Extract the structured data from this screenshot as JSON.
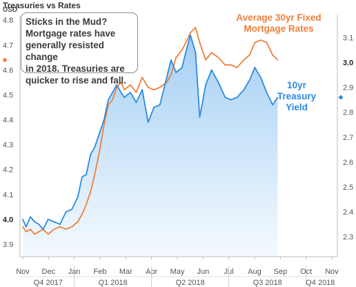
{
  "title": "Treasuries vs Rates",
  "callout": {
    "lines": [
      "Sticks in the Mud?",
      "Mortgage rates have",
      "generally resisted change",
      "in 2018.  Treasuries are",
      "quicker to rise and fall."
    ]
  },
  "colors": {
    "treasury": "#2a8ae2",
    "mortgage": "#ef7f38",
    "area_top": "#9fccf3",
    "area_bottom": "#f3f9fe",
    "axis_text": "#555555"
  },
  "chart_data": {
    "type": "line",
    "title": "Treasuries vs Rates",
    "grid": false,
    "axes": {
      "left": {
        "label": "USD",
        "range": [
          3.85,
          4.82
        ],
        "ticks": [
          "3.9",
          "4.0",
          "4.1",
          "4.2",
          "4.3",
          "4.4",
          "4.5",
          "4.6",
          "4.7",
          "4.8"
        ],
        "bold_ticks": [
          "4.0"
        ]
      },
      "right": {
        "range": [
          2.22,
          3.19
        ],
        "ticks": [
          "2.3",
          "2.4",
          "2.5",
          "2.6",
          "2.7",
          "2.8",
          "2.9",
          "3.0",
          "3.1"
        ],
        "bold_ticks": [
          "3.0"
        ]
      },
      "x": {
        "months": [
          "Nov",
          "Dec",
          "Jan",
          "Feb",
          "Mar",
          "Apr",
          "May",
          "Jun",
          "Jul",
          "Aug",
          "Sep",
          "Oct",
          "Nov"
        ],
        "quarters": [
          "Q4 2017",
          "Q1 2018",
          "Q2 2018",
          "Q3 2018",
          "Q4 2018"
        ]
      }
    },
    "series": [
      {
        "name": "Average 30yr Fixed Mortgage Rates",
        "label_lines": [
          "Average 30yr Fixed",
          "Mortgage Rates"
        ],
        "axis": "left",
        "last_value_marker": 4.64,
        "x": [
          "2017-11-01",
          "2017-11-05",
          "2017-11-10",
          "2017-11-15",
          "2017-11-20",
          "2017-11-25",
          "2017-12-01",
          "2017-12-08",
          "2017-12-15",
          "2017-12-22",
          "2017-12-29",
          "2018-01-05",
          "2018-01-10",
          "2018-01-15",
          "2018-01-20",
          "2018-01-25",
          "2018-01-31",
          "2018-02-05",
          "2018-02-10",
          "2018-02-15",
          "2018-02-20",
          "2018-02-25",
          "2018-03-01",
          "2018-03-08",
          "2018-03-15",
          "2018-03-22",
          "2018-03-29",
          "2018-04-05",
          "2018-04-12",
          "2018-04-20",
          "2018-04-25",
          "2018-05-01",
          "2018-05-08",
          "2018-05-14",
          "2018-05-18",
          "2018-05-24",
          "2018-05-29",
          "2018-06-05",
          "2018-06-12",
          "2018-06-20",
          "2018-06-28",
          "2018-07-05",
          "2018-07-12",
          "2018-07-20",
          "2018-07-27",
          "2018-08-02",
          "2018-08-09",
          "2018-08-16",
          "2018-08-23",
          "2018-08-29"
        ],
        "values": [
          3.97,
          3.95,
          3.96,
          3.94,
          3.95,
          3.96,
          3.94,
          3.96,
          3.97,
          3.96,
          3.97,
          3.99,
          4.02,
          4.06,
          4.11,
          4.18,
          4.28,
          4.38,
          4.46,
          4.48,
          4.53,
          4.55,
          4.52,
          4.54,
          4.51,
          4.57,
          4.53,
          4.52,
          4.53,
          4.55,
          4.58,
          4.65,
          4.68,
          4.72,
          4.75,
          4.77,
          4.71,
          4.64,
          4.67,
          4.65,
          4.62,
          4.62,
          4.61,
          4.64,
          4.66,
          4.71,
          4.72,
          4.71,
          4.66,
          4.64
        ]
      },
      {
        "name": "10yr Treasury Yield",
        "label_lines": [
          "10yr",
          "Treasury",
          "Yield"
        ],
        "axis": "right",
        "last_value_marker": 2.86,
        "x": [
          "2017-11-01",
          "2017-11-05",
          "2017-11-10",
          "2017-11-15",
          "2017-11-20",
          "2017-11-25",
          "2017-12-01",
          "2017-12-08",
          "2017-12-15",
          "2017-12-22",
          "2017-12-29",
          "2018-01-05",
          "2018-01-10",
          "2018-01-15",
          "2018-01-20",
          "2018-01-25",
          "2018-01-31",
          "2018-02-05",
          "2018-02-10",
          "2018-02-15",
          "2018-02-20",
          "2018-02-25",
          "2018-03-01",
          "2018-03-08",
          "2018-03-15",
          "2018-03-22",
          "2018-03-29",
          "2018-04-05",
          "2018-04-12",
          "2018-04-20",
          "2018-04-25",
          "2018-05-01",
          "2018-05-08",
          "2018-05-14",
          "2018-05-18",
          "2018-05-24",
          "2018-05-29",
          "2018-06-05",
          "2018-06-12",
          "2018-06-20",
          "2018-06-28",
          "2018-07-05",
          "2018-07-12",
          "2018-07-20",
          "2018-07-27",
          "2018-08-02",
          "2018-08-09",
          "2018-08-16",
          "2018-08-23",
          "2018-08-29"
        ],
        "values": [
          2.37,
          2.34,
          2.38,
          2.36,
          2.35,
          2.33,
          2.37,
          2.36,
          2.35,
          2.4,
          2.41,
          2.46,
          2.54,
          2.55,
          2.63,
          2.66,
          2.72,
          2.77,
          2.85,
          2.88,
          2.91,
          2.88,
          2.86,
          2.88,
          2.84,
          2.89,
          2.76,
          2.82,
          2.83,
          2.94,
          3.01,
          2.96,
          2.98,
          3.06,
          3.11,
          3.04,
          2.78,
          2.91,
          2.97,
          2.92,
          2.86,
          2.85,
          2.86,
          2.89,
          2.93,
          2.98,
          2.94,
          2.88,
          2.83,
          2.86
        ]
      }
    ]
  }
}
